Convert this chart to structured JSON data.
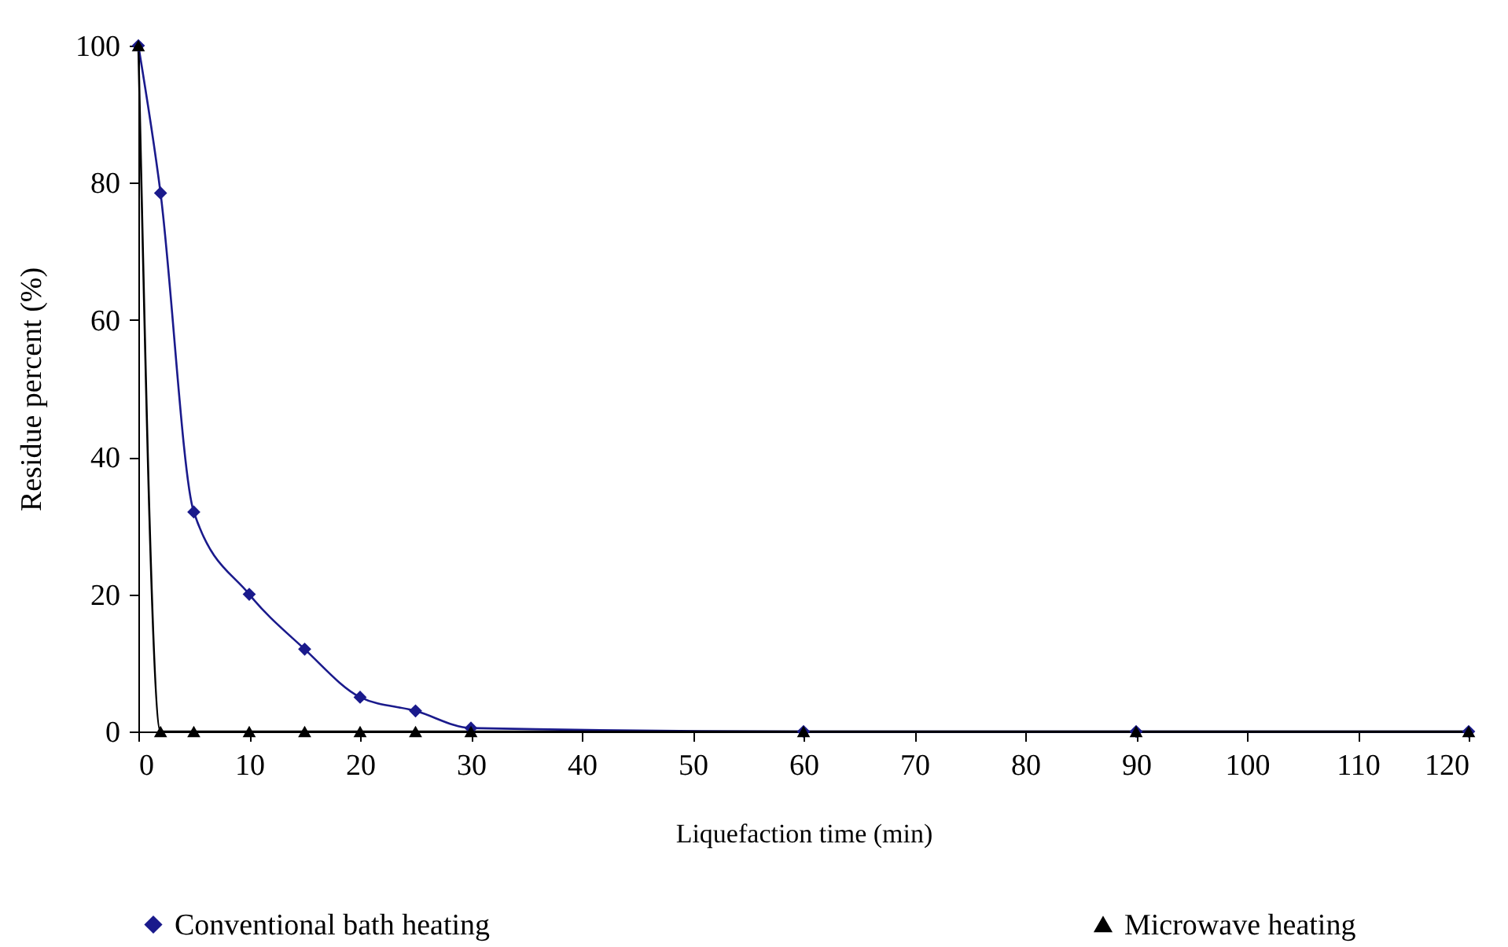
{
  "chart_data": {
    "type": "line",
    "xlabel": "Liquefaction time (min)",
    "ylabel": "Residue percent (%)",
    "x": [
      0,
      2,
      5,
      10,
      15,
      20,
      25,
      30,
      60,
      90,
      120
    ],
    "series": [
      {
        "name": "Conventional bath heating",
        "color": "#1a1a8c",
        "marker": "diamond",
        "values": [
          100,
          78.5,
          32,
          20,
          12,
          5,
          3,
          0.5,
          0,
          0,
          0
        ]
      },
      {
        "name": "Microwave heating",
        "color": "#000000",
        "marker": "triangle",
        "values": [
          100,
          0,
          0,
          0,
          0,
          0,
          0,
          0,
          0,
          0,
          0
        ]
      }
    ],
    "xlim": [
      0,
      120
    ],
    "xticks": [
      0,
      10,
      20,
      30,
      40,
      50,
      60,
      70,
      80,
      90,
      100,
      110,
      120
    ],
    "ylim": [
      0,
      100
    ],
    "yticks": [
      0,
      20,
      40,
      60,
      80,
      100
    ],
    "grid": false,
    "legend": "bottom",
    "line_style": "solid"
  }
}
